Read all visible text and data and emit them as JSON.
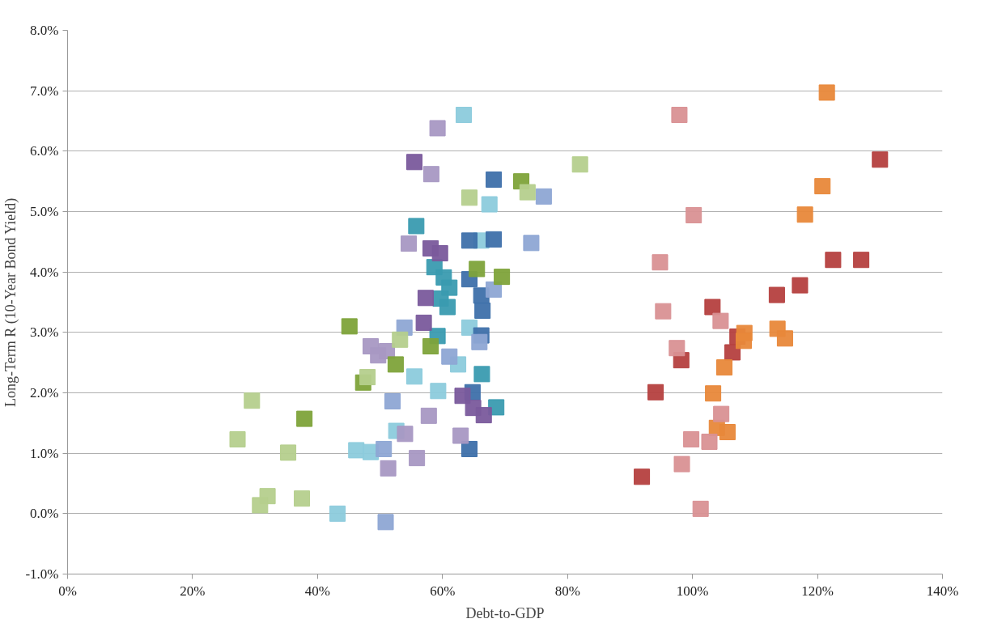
{
  "chart_data": {
    "type": "scatter",
    "xlabel": "Debt-to-GDP",
    "ylabel": "Long-Term R (10-Year Bond Yield)",
    "xlim": [
      0,
      140
    ],
    "ylim": [
      -1,
      8
    ],
    "xticks": [
      {
        "value": 0,
        "label": "0%"
      },
      {
        "value": 20,
        "label": "20%"
      },
      {
        "value": 40,
        "label": "40%"
      },
      {
        "value": 60,
        "label": "60%"
      },
      {
        "value": 80,
        "label": "80%"
      },
      {
        "value": 100,
        "label": "100%"
      },
      {
        "value": 120,
        "label": "120%"
      },
      {
        "value": 140,
        "label": "140%"
      }
    ],
    "yticks": [
      {
        "value": -1,
        "label": "-1.0%"
      },
      {
        "value": 0,
        "label": "0.0%"
      },
      {
        "value": 1,
        "label": "1.0%"
      },
      {
        "value": 2,
        "label": "2.0%"
      },
      {
        "value": 3,
        "label": "3.0%"
      },
      {
        "value": 4,
        "label": "4.0%"
      },
      {
        "value": 5,
        "label": "5.0%"
      },
      {
        "value": 6,
        "label": "6.0%"
      },
      {
        "value": 7,
        "label": "7.0%"
      },
      {
        "value": 8,
        "label": "8.0%"
      }
    ],
    "grid": "y",
    "marker": "square",
    "series": [
      {
        "color": "#b5403f",
        "x": [
          130.0,
          127.0,
          122.5,
          117.2,
          113.5,
          103.2,
          106.4,
          107.2,
          98.2,
          94.1,
          91.9
        ],
        "values": [
          5.86,
          4.2,
          4.2,
          3.78,
          3.62,
          3.42,
          2.67,
          2.93,
          2.54,
          2.01,
          0.61
        ]
      },
      {
        "color": "#e8883a",
        "x": [
          121.5,
          120.8,
          118.0,
          113.6,
          114.8,
          108.3,
          108.2,
          105.1,
          103.3,
          103.9,
          105.6
        ],
        "values": [
          6.97,
          5.42,
          4.95,
          3.06,
          2.9,
          2.99,
          2.86,
          2.42,
          1.99,
          1.42,
          1.35
        ]
      },
      {
        "color": "#d99194",
        "x": [
          97.9,
          100.2,
          94.8,
          95.3,
          104.5,
          97.5,
          104.6,
          99.8,
          102.7,
          98.3,
          101.3
        ],
        "values": [
          6.6,
          4.94,
          4.16,
          3.35,
          3.19,
          2.74,
          1.65,
          1.23,
          1.19,
          0.82,
          0.08
        ]
      },
      {
        "color": "#8ccbdc",
        "x": [
          63.4,
          67.5,
          66.2,
          64.3,
          62.5,
          55.5,
          59.3,
          52.6,
          46.2,
          48.5,
          43.2
        ],
        "values": [
          6.6,
          5.12,
          4.52,
          3.08,
          2.47,
          2.27,
          2.03,
          1.37,
          1.05,
          1.02,
          0.0
        ]
      },
      {
        "color": "#3a9bb0",
        "x": [
          55.8,
          58.7,
          60.2,
          61.1,
          59.7,
          60.8,
          59.2,
          66.3,
          68.6
        ],
        "values": [
          4.76,
          4.08,
          3.91,
          3.74,
          3.56,
          3.42,
          2.94,
          2.31,
          1.76
        ]
      },
      {
        "color": "#3e70aa",
        "x": [
          68.2,
          64.3,
          68.2,
          64.3,
          66.2,
          66.4,
          66.2,
          64.8,
          64.3
        ],
        "values": [
          5.53,
          4.52,
          4.54,
          3.88,
          3.61,
          3.36,
          2.95,
          2.01,
          1.07
        ]
      },
      {
        "color": "#7a5a9c",
        "x": [
          55.5,
          58.1,
          59.6,
          57.3,
          57.0,
          63.2,
          64.9,
          66.6
        ],
        "values": [
          5.82,
          4.39,
          4.31,
          3.57,
          3.16,
          1.95,
          1.75,
          1.63
        ]
      },
      {
        "color": "#a898c3",
        "x": [
          59.2,
          58.2,
          54.6,
          48.5,
          49.7,
          51.1,
          57.8,
          54.0,
          62.9,
          55.9,
          51.3
        ],
        "values": [
          6.38,
          5.62,
          4.47,
          2.77,
          2.62,
          2.69,
          1.62,
          1.32,
          1.29,
          0.92,
          0.75
        ]
      },
      {
        "color": "#8ea6d4",
        "x": [
          76.2,
          74.2,
          68.2,
          53.9,
          65.9,
          61.1,
          52.0,
          50.6,
          50.9
        ],
        "values": [
          5.25,
          4.48,
          3.71,
          3.08,
          2.84,
          2.6,
          1.86,
          1.07,
          -0.14
        ]
      },
      {
        "color": "#7ea33a",
        "x": [
          72.6,
          65.5,
          69.5,
          45.1,
          58.1,
          52.5,
          47.3,
          37.9
        ],
        "values": [
          5.5,
          4.05,
          3.92,
          3.1,
          2.77,
          2.47,
          2.17,
          1.57
        ]
      },
      {
        "color": "#b5cf8d",
        "x": [
          82.0,
          73.6,
          64.3,
          53.2,
          48.0,
          35.3,
          37.5,
          29.5,
          27.2,
          32.0,
          30.8
        ],
        "values": [
          5.78,
          5.32,
          5.23,
          2.88,
          2.26,
          1.01,
          0.25,
          1.87,
          1.23,
          0.29,
          0.14
        ]
      }
    ]
  }
}
